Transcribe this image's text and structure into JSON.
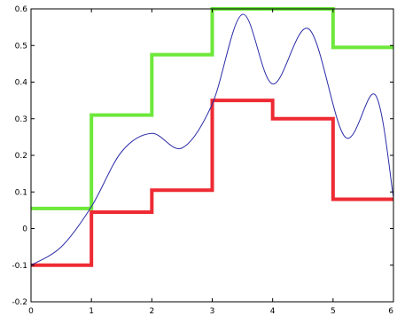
{
  "chart_data": {
    "type": "line",
    "title": "",
    "xlabel": "",
    "ylabel": "",
    "xlim": [
      0,
      6
    ],
    "ylim": [
      -0.2,
      0.6
    ],
    "grid": false,
    "x_ticks": [
      "0",
      "1",
      "2",
      "3",
      "4",
      "5",
      "6"
    ],
    "y_ticks": [
      "-0.2",
      "-0.1",
      "0",
      "0.1",
      "0.2",
      "0.3",
      "0.4",
      "0.5",
      "0.6"
    ],
    "series": [
      {
        "style": "step",
        "color": "#6de83a",
        "x": [
          0,
          1,
          2,
          3,
          4,
          5,
          6
        ],
        "y": [
          0.055,
          0.31,
          0.475,
          0.6,
          0.6,
          0.495,
          0.495
        ]
      },
      {
        "style": "step",
        "color": "#ee2a33",
        "x": [
          0,
          1,
          2,
          3,
          4,
          5,
          6
        ],
        "y": [
          -0.1,
          0.045,
          0.105,
          0.35,
          0.3,
          0.08,
          0.08
        ]
      },
      {
        "style": "smooth",
        "color": "#2b2ba8",
        "x": [
          0,
          0.5,
          1,
          1.5,
          2,
          2.5,
          3,
          3.5,
          4,
          4.6,
          5.2,
          5.7,
          6
        ],
        "y": [
          -0.1,
          -0.05,
          0.06,
          0.21,
          0.26,
          0.22,
          0.34,
          0.585,
          0.395,
          0.545,
          0.25,
          0.365,
          0.085
        ]
      }
    ]
  }
}
